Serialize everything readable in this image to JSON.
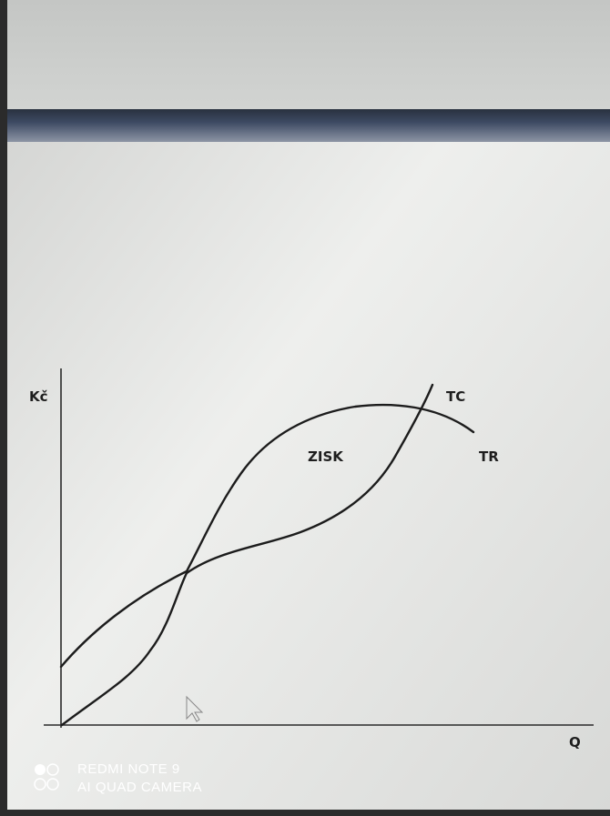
{
  "axes": {
    "y_label": "Kč",
    "x_label": "Q"
  },
  "curves": [
    {
      "label": "TC"
    },
    {
      "label": "TR"
    }
  ],
  "region_label": "ZISK",
  "watermark": {
    "line1": "REDMI NOTE 9",
    "line2": "AI QUAD CAMERA"
  }
}
